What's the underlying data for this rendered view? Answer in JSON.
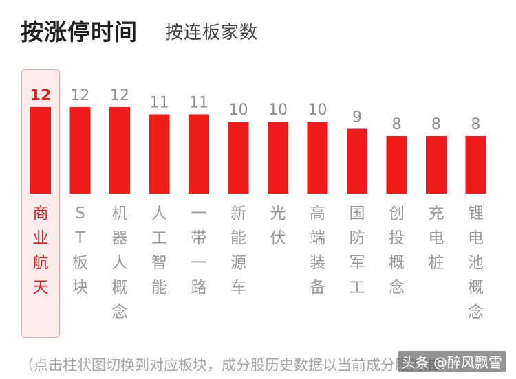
{
  "header": {
    "title": "按涨停时间",
    "subtitle": "按连板家数"
  },
  "colors": {
    "bar": "#ef1a1a",
    "selected_text": "#e02020",
    "value_text": "#8c8c8c",
    "label_text": "#9a9a9a",
    "selected_bg": "#fdecec"
  },
  "chart_data": {
    "type": "bar",
    "categories": [
      "商业航天",
      "ST板块",
      "机器人概念",
      "人工智能",
      "一带一路",
      "新能源车",
      "光伏",
      "高端装备",
      "国防军工",
      "创投概念",
      "充电桩",
      "锂电池概念"
    ],
    "values": [
      12,
      12,
      12,
      11,
      11,
      10,
      10,
      10,
      9,
      8,
      8,
      8
    ],
    "selected_index": 0,
    "ylim": [
      0,
      12
    ],
    "grid": false,
    "legend": "none"
  },
  "footer": {
    "note": "（点击柱状图切换到对应板块，成分股历史数据以当前成分股为准）"
  },
  "watermark": {
    "text": "头条 @醉风飘雪"
  }
}
